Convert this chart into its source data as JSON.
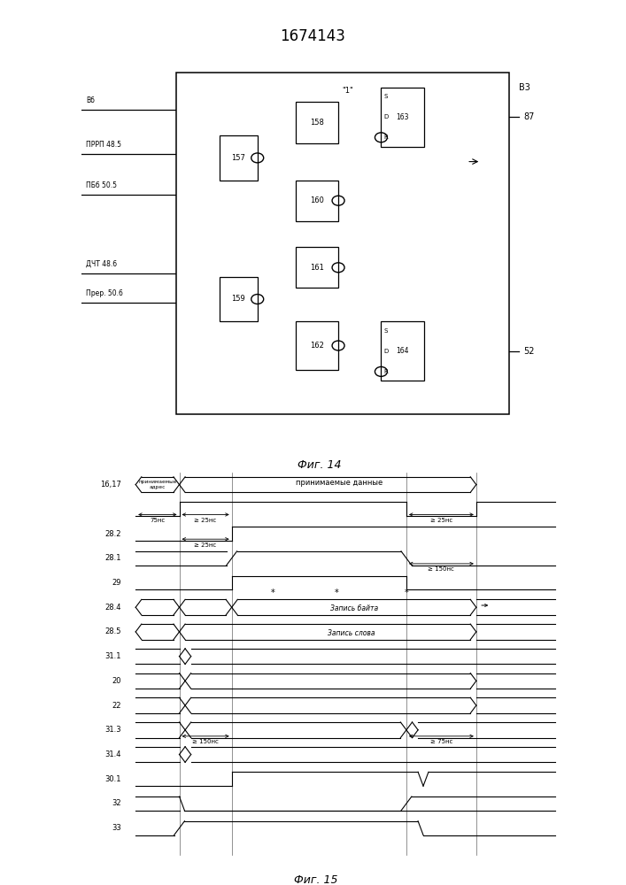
{
  "title": "1674143",
  "fig14_caption": "Фиг. 14",
  "fig15_caption": "Фиг. 15",
  "bg": "#ffffff",
  "lc": "#000000"
}
